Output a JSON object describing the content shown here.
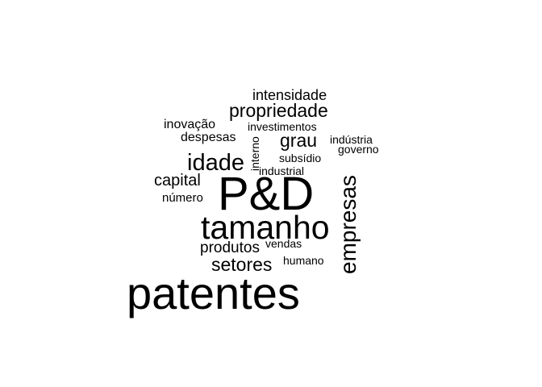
{
  "word_cloud": {
    "text_color": "#000000",
    "background": "#ffffff",
    "words": [
      {
        "text": "patentes"
      },
      {
        "text": "P&D"
      },
      {
        "text": "tamanho"
      },
      {
        "text": "empresas"
      },
      {
        "text": "idade"
      },
      {
        "text": "propriedade"
      },
      {
        "text": "setores"
      },
      {
        "text": "capital"
      },
      {
        "text": "produtos"
      },
      {
        "text": "grau"
      },
      {
        "text": "intensidade"
      },
      {
        "text": "inovação"
      },
      {
        "text": "despesas"
      },
      {
        "text": "investimentos"
      },
      {
        "text": "interno"
      },
      {
        "text": "indústria"
      },
      {
        "text": "governo"
      },
      {
        "text": "subsídio"
      },
      {
        "text": "industrial"
      },
      {
        "text": "número"
      },
      {
        "text": "vendas"
      },
      {
        "text": "humano"
      }
    ]
  }
}
